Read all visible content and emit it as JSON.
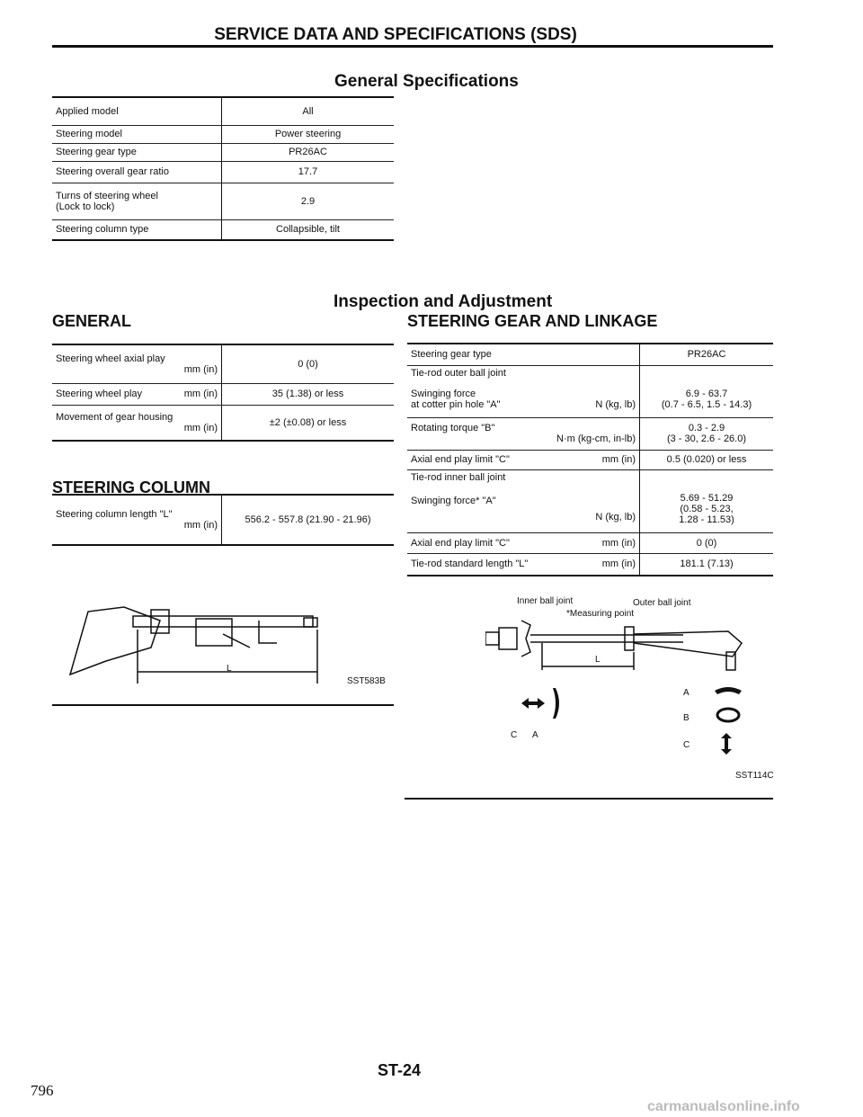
{
  "header": {
    "title": "SERVICE DATA AND SPECIFICATIONS (SDS)"
  },
  "general_specs": {
    "title": "General Specifications",
    "rows": [
      {
        "label": "Applied model",
        "value": "All"
      },
      {
        "label": "Steering model",
        "value": "Power steering"
      },
      {
        "label": "Steering gear type",
        "value": "PR26AC"
      },
      {
        "label": "Steering overall gear ratio",
        "value": "17.7"
      },
      {
        "label": "Turns of steering wheel",
        "label2": "(Lock to lock)",
        "value": "2.9"
      },
      {
        "label": "Steering column type",
        "value": "Collapsible, tilt"
      }
    ]
  },
  "inspection": {
    "title": "Inspection and Adjustment"
  },
  "general": {
    "title": "GENERAL",
    "rows": [
      {
        "label": "Steering wheel axial play",
        "unit": "mm (in)",
        "value": "0 (0)"
      },
      {
        "label": "Steering wheel play",
        "unit": "mm (in)",
        "value": "35 (1.38) or less"
      },
      {
        "label": "Movement of gear housing",
        "unit": "mm (in)",
        "value": "±2 (±0.08) or less"
      }
    ]
  },
  "column": {
    "title": "STEERING COLUMN",
    "label": "Steering column length \"L\"",
    "unit": "mm (in)",
    "value": "556.2 - 557.8 (21.90 - 21.96)",
    "fig_label": "L",
    "fig_code": "SST583B"
  },
  "linkage": {
    "title": "STEERING GEAR AND LINKAGE",
    "gear_type": {
      "label": "Steering gear type",
      "value": "PR26AC"
    },
    "outer": {
      "label": "Tie-rod outer ball joint",
      "swing": {
        "label": "Swinging force",
        "label2": "at cotter pin hole \"A\"",
        "unit": "N (kg, lb)",
        "value": "6.9 - 63.7",
        "value2": "(0.7 - 6.5, 1.5 - 14.3)"
      },
      "torque": {
        "label": "Rotating torque \"B\"",
        "unit": "N·m (kg-cm, in-lb)",
        "value": "0.3 - 2.9",
        "value2": "(3 - 30, 2.6 - 26.0)"
      },
      "axial": {
        "label": "Axial end play limit \"C\"",
        "unit": "mm (in)",
        "value": "0.5 (0.020) or less"
      }
    },
    "inner": {
      "label": "Tie-rod inner ball joint",
      "swing": {
        "label": "Swinging force* \"A\"",
        "unit": "N (kg, lb)",
        "value": "5.69 - 51.29",
        "value2": "(0.58 - 5.23,",
        "value3": "1.28 - 11.53)"
      },
      "axial": {
        "label": "Axial end play limit \"C\"",
        "unit": "mm (in)",
        "value": "0 (0)"
      }
    },
    "length": {
      "label": "Tie-rod standard length \"L\"",
      "unit": "mm (in)",
      "value": "181.1 (7.13)"
    },
    "fig": {
      "inner": "Inner ball joint",
      "outer": "Outer ball joint",
      "measuring": "*Measuring point",
      "L": "L",
      "C": "C",
      "A": "A",
      "rA": "A",
      "rB": "B",
      "rC": "C",
      "code": "SST114C"
    }
  },
  "footer": {
    "page_left": "796",
    "page_code": "ST-24",
    "watermark": "carmanualsonline.info"
  }
}
